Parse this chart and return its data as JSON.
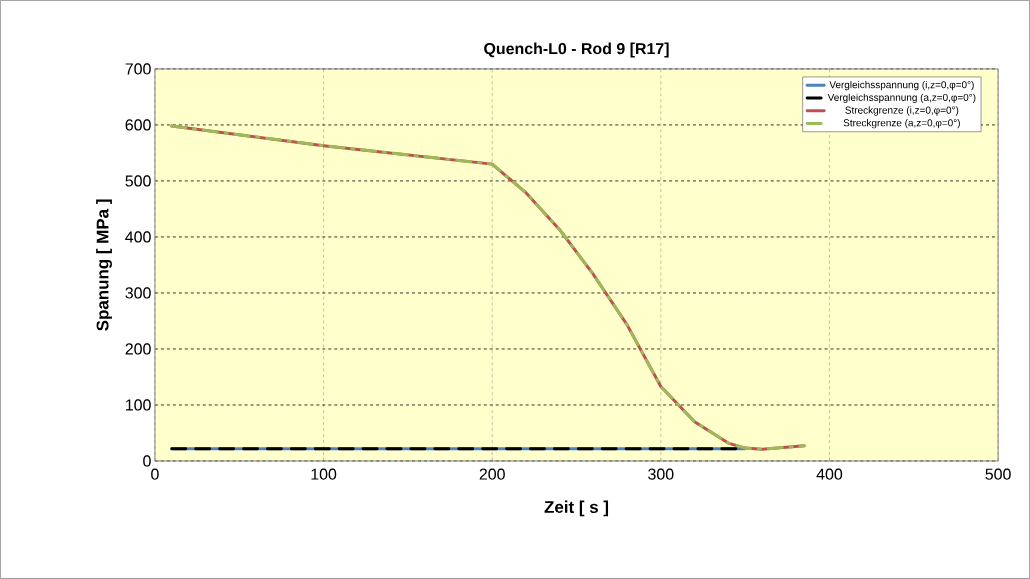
{
  "chart_data": {
    "type": "line",
    "title": "Quench-L0 - Rod 9 [R17]",
    "xlabel": "Zeit [ s ]",
    "ylabel": "Spanung [ MPa ]",
    "xlim": [
      0,
      500
    ],
    "xticks": [
      0,
      100,
      200,
      300,
      400,
      500
    ],
    "ylim": [
      0,
      700
    ],
    "yticks": [
      0,
      100,
      200,
      300,
      400,
      500,
      600,
      700
    ],
    "grid": true,
    "legend": "top right",
    "marker": "none",
    "series": [
      {
        "name": "Vergleichsspannung (i,z=0,φ=0°)",
        "color": "#4f81bd",
        "line_style": "solid",
        "x": [
          10,
          100,
          200,
          300,
          350
        ],
        "values": [
          22,
          22,
          22,
          22,
          22
        ]
      },
      {
        "name": "Vergleichsspannung (a,z=0,φ=0°)",
        "color": "#000000",
        "line_style": "dashed",
        "x": [
          10,
          100,
          200,
          300,
          350
        ],
        "values": [
          22,
          22,
          22,
          22,
          22
        ]
      },
      {
        "name": "Streckgrenze (i,z=0,φ=0°)",
        "color": "#c0504d",
        "line_style": "solid",
        "x": [
          10,
          100,
          200,
          220,
          240,
          260,
          280,
          300,
          320,
          340,
          350,
          360,
          385
        ],
        "values": [
          598,
          563,
          530,
          479,
          413,
          333,
          243,
          133,
          70,
          32,
          23,
          21,
          27
        ]
      },
      {
        "name": "Streckgrenze (a,z=0,φ=0°)",
        "color": "#9bbb59",
        "line_style": "dashdot",
        "x": [
          10,
          100,
          200,
          220,
          240,
          260,
          280,
          300,
          320,
          340,
          350,
          360,
          385
        ],
        "values": [
          598,
          563,
          530,
          479,
          413,
          333,
          243,
          133,
          70,
          32,
          23,
          21,
          27
        ]
      }
    ]
  }
}
